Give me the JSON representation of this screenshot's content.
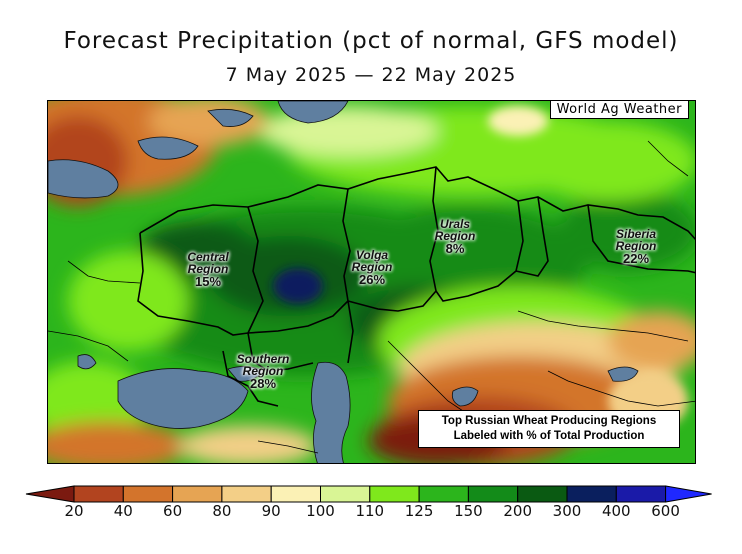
{
  "title": "Forecast Precipitation (pct of normal, GFS model)",
  "subtitle": "7 May 2025 — 22 May 2025",
  "credit": "World Ag Weather",
  "regions": [
    {
      "name": "Central Region",
      "line1": "Central",
      "line2": "Region",
      "pct": "15%"
    },
    {
      "name": "Volga Region",
      "line1": "Volga",
      "line2": "Region",
      "pct": "26%"
    },
    {
      "name": "Urals Region",
      "line1": "Urals",
      "line2": "Region",
      "pct": "8%"
    },
    {
      "name": "Siberia Region",
      "line1": "Siberia",
      "line2": "Region",
      "pct": "22%"
    },
    {
      "name": "Southern Region",
      "line1": "Southern",
      "line2": "Region",
      "pct": "28%"
    }
  ],
  "note": {
    "line1": "Top Russian Wheat Producing Regions",
    "line2": "Labeled with % of Total Production"
  },
  "legend": {
    "labels": [
      "20",
      "40",
      "60",
      "80",
      "90",
      "100",
      "110",
      "125",
      "150",
      "200",
      "300",
      "400",
      "600"
    ],
    "colors": [
      "#7b1a10",
      "#b2441f",
      "#d3742c",
      "#e6a453",
      "#f3cf87",
      "#fbf1b5",
      "#d9f595",
      "#7fe81c",
      "#2cb51c",
      "#138b19",
      "#0a5a12",
      "#0a1f5e",
      "#1a1aa8",
      "#1f28ff"
    ]
  }
}
